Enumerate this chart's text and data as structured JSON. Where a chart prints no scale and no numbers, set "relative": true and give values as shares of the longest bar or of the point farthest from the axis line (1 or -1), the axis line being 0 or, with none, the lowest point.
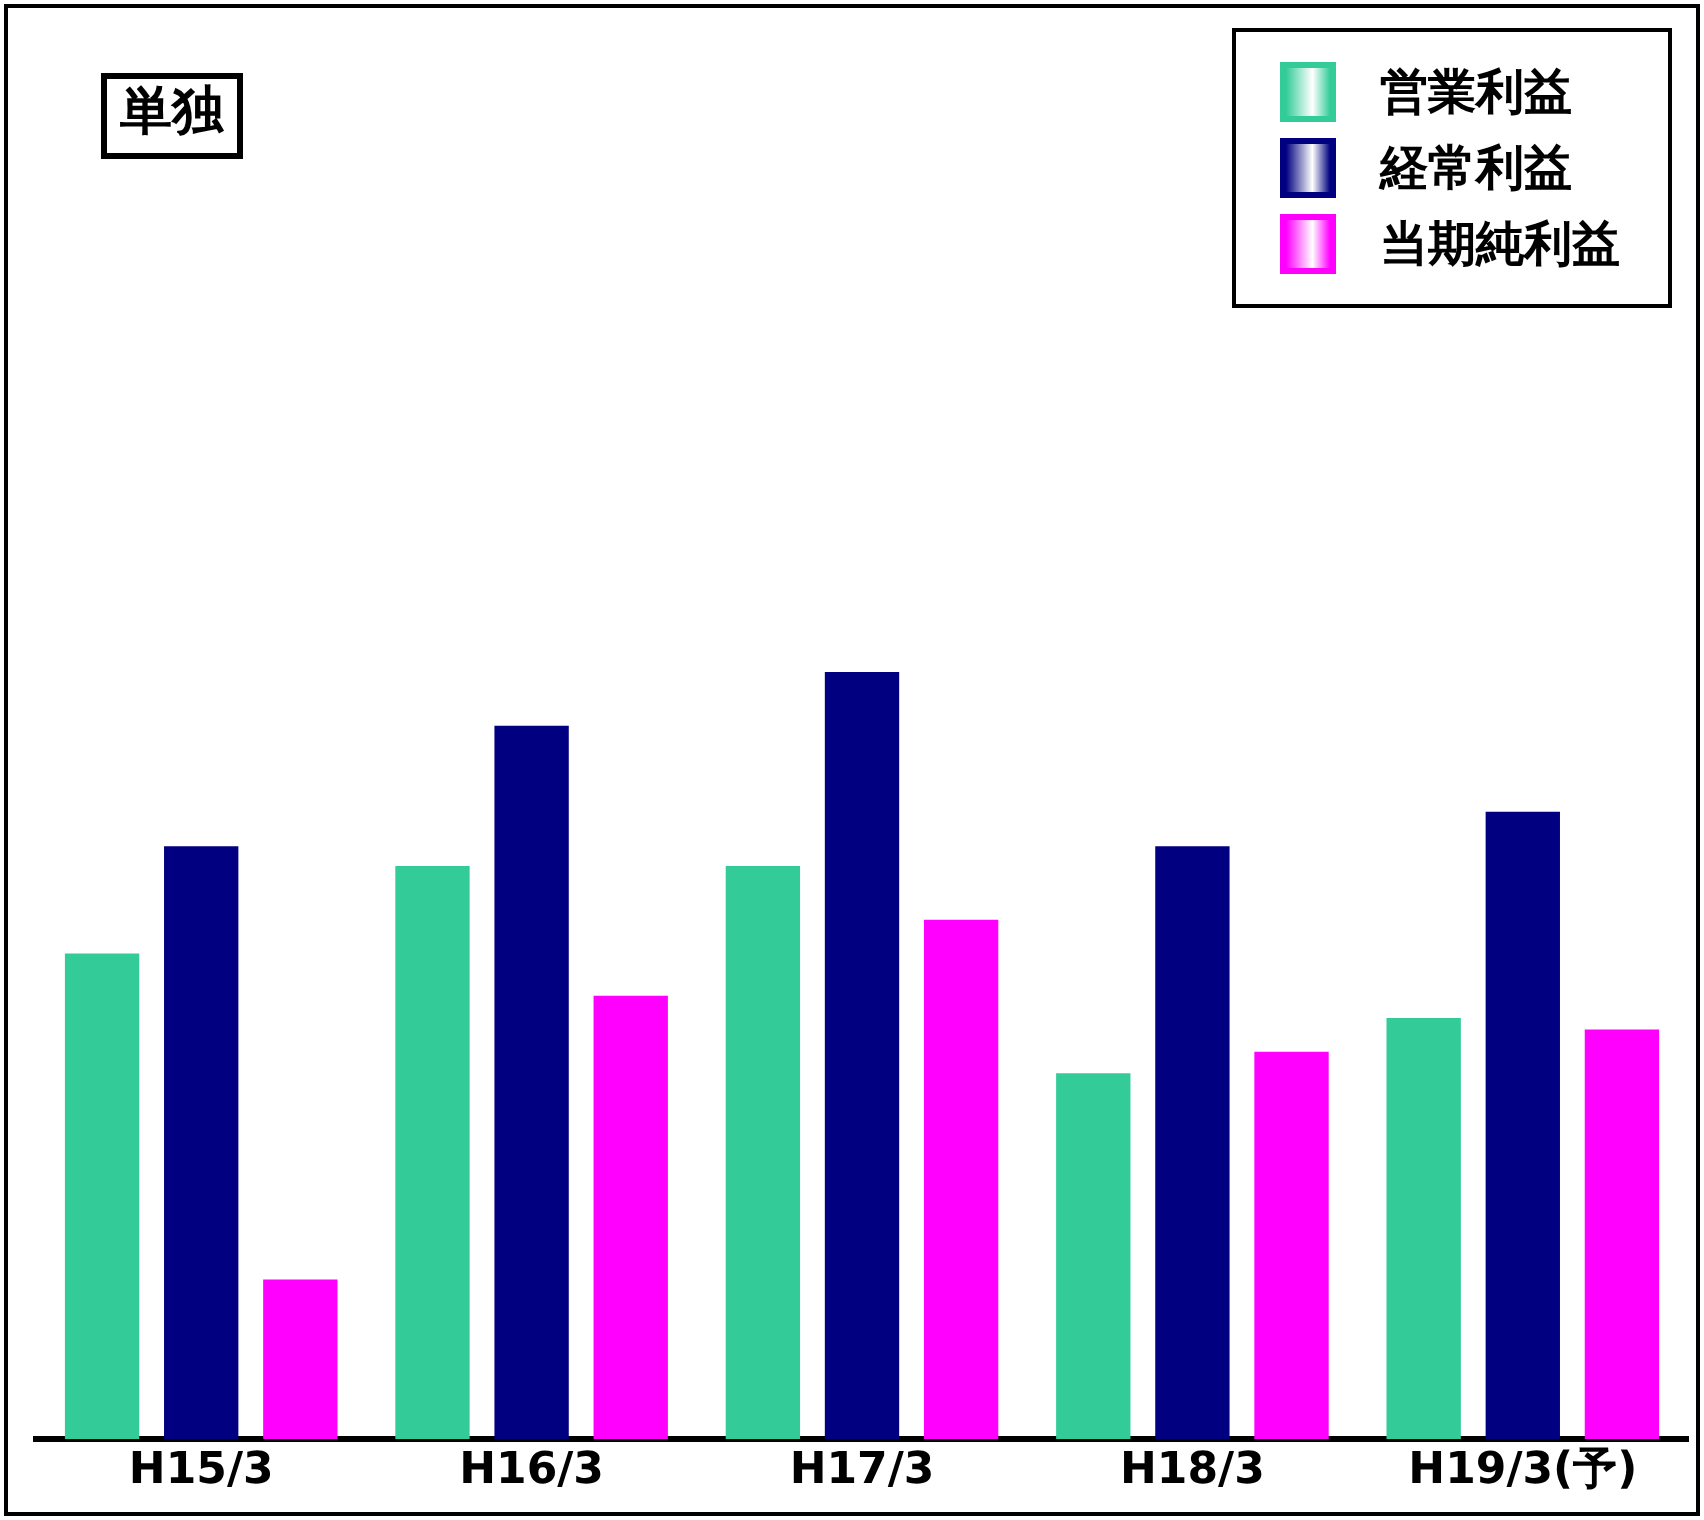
{
  "chart_data": {
    "type": "bar",
    "relative": true,
    "legend": "top right",
    "annotations": [
      "単独"
    ],
    "categories": [
      "H15/3",
      "H16/3",
      "H17/3",
      "H18/3",
      "H19/3(予)"
    ],
    "series": [
      {
        "name": "営業利益",
        "color": "#33cc99",
        "values": [
          0.633,
          0.747,
          0.747,
          0.477,
          0.549
        ]
      },
      {
        "name": "経常利益",
        "color": "#000080",
        "values": [
          0.773,
          0.93,
          1.0,
          0.773,
          0.818
        ]
      },
      {
        "name": "当期純利益",
        "color": "#ff00ff",
        "values": [
          0.208,
          0.578,
          0.677,
          0.505,
          0.534
        ]
      }
    ]
  }
}
